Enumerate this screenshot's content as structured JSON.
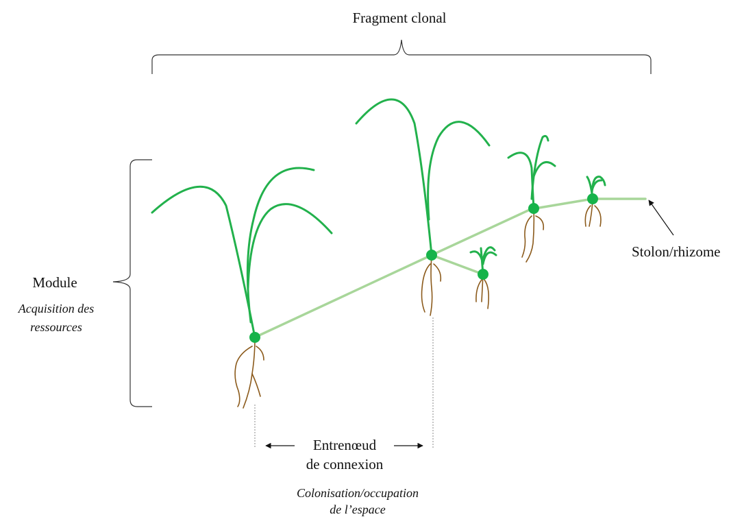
{
  "labels": {
    "fragment": "Fragment clonal",
    "module": "Module",
    "module_sub_line1": "Acquisition des",
    "module_sub_line2": "ressources",
    "internode_line1": "Entrenœud",
    "internode_line2": "de connexion",
    "colonisation_line1": "Colonisation/occupation",
    "colonisation_line2": "de l’espace",
    "stolon": "Stolon/rhizome"
  },
  "colors": {
    "leaf": "#22b14c",
    "node": "#16b34a",
    "stolon": "#a8d69a",
    "root": "#8b5a1b",
    "bracket": "#333333",
    "dotted": "#888888"
  },
  "icons": {
    "ramet": "grass-ramet-icon",
    "arrow": "arrow-icon"
  }
}
